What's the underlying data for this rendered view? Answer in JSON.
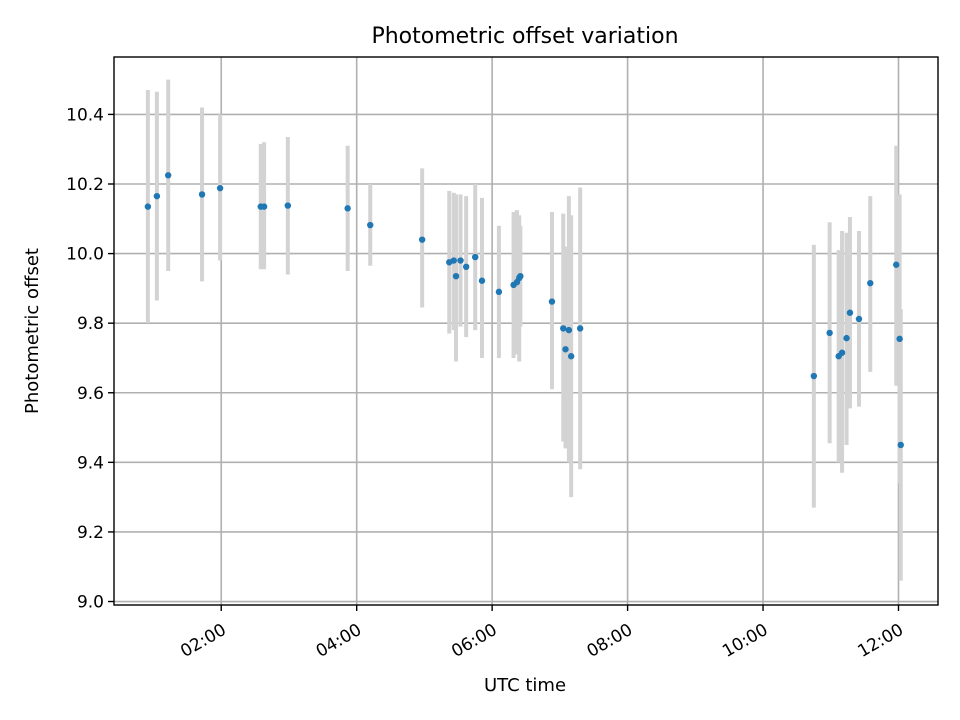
{
  "chart_data": {
    "type": "scatter",
    "title": "Photometric offset variation",
    "xlabel": "UTC time",
    "ylabel": "Photometric offset",
    "xlim": [
      "00:25",
      "12:35"
    ],
    "ylim": [
      8.99,
      10.565
    ],
    "grid": true,
    "xticks": [
      "02:00",
      "04:00",
      "06:00",
      "08:00",
      "10:00",
      "12:00"
    ],
    "yticks": [
      "9.0",
      "9.2",
      "9.4",
      "9.6",
      "9.8",
      "10.0",
      "10.2",
      "10.4"
    ],
    "point_color": "#1f77b4",
    "errorbar_color": "#d3d3d3",
    "points": [
      {
        "t": "00:55",
        "y": 10.135,
        "lo": 9.8,
        "hi": 10.47
      },
      {
        "t": "01:03",
        "y": 10.165,
        "lo": 9.865,
        "hi": 10.465
      },
      {
        "t": "01:13",
        "y": 10.225,
        "lo": 9.95,
        "hi": 10.5
      },
      {
        "t": "01:43",
        "y": 10.17,
        "lo": 9.92,
        "hi": 10.42
      },
      {
        "t": "01:59",
        "y": 10.188,
        "lo": 9.98,
        "hi": 10.4
      },
      {
        "t": "02:35",
        "y": 10.135,
        "lo": 9.955,
        "hi": 10.315
      },
      {
        "t": "02:38",
        "y": 10.135,
        "lo": 9.955,
        "hi": 10.32
      },
      {
        "t": "02:59",
        "y": 10.138,
        "lo": 9.94,
        "hi": 10.335
      },
      {
        "t": "03:52",
        "y": 10.13,
        "lo": 9.95,
        "hi": 10.31
      },
      {
        "t": "04:12",
        "y": 10.082,
        "lo": 9.965,
        "hi": 10.2
      },
      {
        "t": "04:58",
        "y": 10.04,
        "lo": 9.845,
        "hi": 10.245
      },
      {
        "t": "05:22",
        "y": 9.975,
        "lo": 9.77,
        "hi": 10.18
      },
      {
        "t": "05:26",
        "y": 9.98,
        "lo": 9.78,
        "hi": 10.175
      },
      {
        "t": "05:28",
        "y": 9.935,
        "lo": 9.69,
        "hi": 10.17
      },
      {
        "t": "05:32",
        "y": 9.98,
        "lo": 9.79,
        "hi": 10.17
      },
      {
        "t": "05:37",
        "y": 9.962,
        "lo": 9.76,
        "hi": 10.165
      },
      {
        "t": "05:45",
        "y": 9.99,
        "lo": 9.78,
        "hi": 10.2
      },
      {
        "t": "05:51",
        "y": 9.922,
        "lo": 9.7,
        "hi": 10.16
      },
      {
        "t": "06:06",
        "y": 9.89,
        "lo": 9.7,
        "hi": 10.08
      },
      {
        "t": "06:19",
        "y": 9.91,
        "lo": 9.7,
        "hi": 10.12
      },
      {
        "t": "06:22",
        "y": 9.918,
        "lo": 9.71,
        "hi": 10.125
      },
      {
        "t": "06:24",
        "y": 9.93,
        "lo": 9.69,
        "hi": 10.11
      },
      {
        "t": "06:25",
        "y": 9.935,
        "lo": 9.79,
        "hi": 10.08
      },
      {
        "t": "06:53",
        "y": 9.862,
        "lo": 9.61,
        "hi": 10.12
      },
      {
        "t": "07:03",
        "y": 9.785,
        "lo": 9.46,
        "hi": 10.115
      },
      {
        "t": "07:05",
        "y": 9.725,
        "lo": 9.44,
        "hi": 10.02
      },
      {
        "t": "07:08",
        "y": 9.78,
        "lo": 9.4,
        "hi": 10.165
      },
      {
        "t": "07:10",
        "y": 9.705,
        "lo": 9.3,
        "hi": 10.11
      },
      {
        "t": "07:18",
        "y": 9.785,
        "lo": 9.38,
        "hi": 10.19
      },
      {
        "t": "10:45",
        "y": 9.648,
        "lo": 9.27,
        "hi": 10.025
      },
      {
        "t": "10:59",
        "y": 9.772,
        "lo": 9.455,
        "hi": 10.09
      },
      {
        "t": "11:07",
        "y": 9.705,
        "lo": 9.4,
        "hi": 10.01
      },
      {
        "t": "11:10",
        "y": 9.715,
        "lo": 9.37,
        "hi": 10.065
      },
      {
        "t": "11:14",
        "y": 9.757,
        "lo": 9.45,
        "hi": 10.06
      },
      {
        "t": "11:17",
        "y": 9.83,
        "lo": 9.555,
        "hi": 10.105
      },
      {
        "t": "11:25",
        "y": 9.812,
        "lo": 9.56,
        "hi": 10.065
      },
      {
        "t": "11:35",
        "y": 9.915,
        "lo": 9.66,
        "hi": 10.165
      },
      {
        "t": "11:58",
        "y": 9.968,
        "lo": 9.62,
        "hi": 10.31
      },
      {
        "t": "12:01",
        "y": 9.755,
        "lo": 9.34,
        "hi": 10.17
      },
      {
        "t": "12:02",
        "y": 9.45,
        "lo": 9.06,
        "hi": 9.84
      }
    ]
  }
}
